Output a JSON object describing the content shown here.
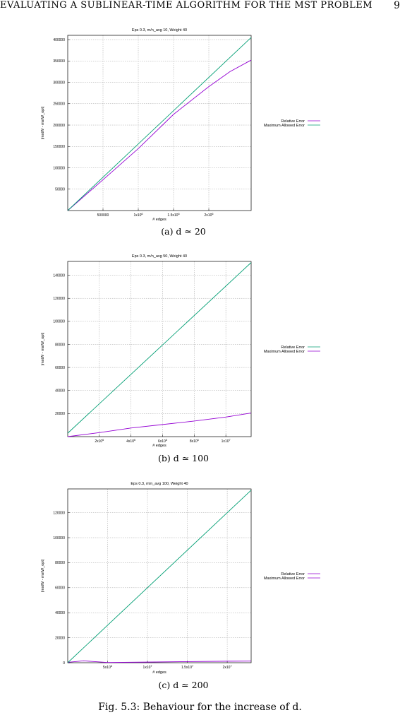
{
  "header": {
    "running_title": "EVALUATING A SUBLINEAR-TIME ALGORITHM FOR THE MST PROBLEM",
    "page_number": "9"
  },
  "figure_caption": "Fig. 5.3: Behaviour for the increase of d.",
  "colors": {
    "relative_error": "#9400d3",
    "maximum_allowed_error": "#009e73",
    "grid": "#a0a0a0"
  },
  "chart_data": [
    {
      "type": "line",
      "caption": "(a) d ≃ 20",
      "title": "Eps 0.3, m/n_avg 10, Weight 40",
      "xlabel": "# edges",
      "ylabel": "|mstW - mstW_opt|",
      "xlim": [
        0,
        2600000
      ],
      "ylim": [
        0,
        410000
      ],
      "xticks": [
        500000,
        1000000,
        1500000,
        2000000
      ],
      "xtick_labels": [
        "500000",
        "1x10^6",
        "1.5x10^6",
        "2x10^6"
      ],
      "yticks": [
        50000,
        100000,
        150000,
        200000,
        250000,
        300000,
        350000,
        400000
      ],
      "ytick_labels": [
        "50000",
        "100000",
        "150000",
        "200000",
        "250000",
        "300000",
        "350000",
        "400000"
      ],
      "grid": true,
      "legend_position": "right",
      "series": [
        {
          "name": "Relative Error",
          "color": "#9400d3",
          "x": [
            0,
            500000,
            1000000,
            1500000,
            2000000,
            2300000,
            2600000
          ],
          "y": [
            0,
            72000,
            145000,
            225000,
            290000,
            325000,
            352000
          ]
        },
        {
          "name": "Maximum Allowed Error",
          "color": "#009e73",
          "x": [
            0,
            2600000
          ],
          "y": [
            0,
            405000
          ]
        }
      ]
    },
    {
      "type": "line",
      "caption": "(b) d ≃ 100",
      "title": "Eps 0.3, m/n_avg 50, Weight 40",
      "xlabel": "# edges",
      "ylabel": "|mstW - mstW_opt|",
      "xlim": [
        0,
        11600000
      ],
      "ylim": [
        0,
        152000
      ],
      "xticks": [
        2000000,
        4000000,
        6000000,
        8000000,
        10000000
      ],
      "xtick_labels": [
        "2x10^6",
        "4x10^6",
        "6x10^6",
        "8x10^6",
        "1x10^7"
      ],
      "yticks": [
        20000,
        40000,
        60000,
        80000,
        100000,
        120000,
        140000
      ],
      "ytick_labels": [
        "20000",
        "40000",
        "60000",
        "80000",
        "100000",
        "120000",
        "140000"
      ],
      "grid": true,
      "legend_position": "right",
      "series": [
        {
          "name": "Relative Error",
          "color": "#9400d3",
          "x": [
            0,
            2000000,
            4000000,
            6000000,
            8000000,
            10000000,
            11600000
          ],
          "y": [
            0,
            3500,
            7500,
            10500,
            13500,
            17000,
            20500
          ]
        },
        {
          "name": "Maximum Allowed Error",
          "color": "#009e73",
          "x": [
            0,
            11600000
          ],
          "y": [
            3000,
            151000
          ]
        }
      ]
    },
    {
      "type": "line",
      "caption": "(c) d ≃ 200",
      "title": "Eps 0.3, m/n_avg 100, Weight 40",
      "xlabel": "# edges",
      "ylabel": "|mstW - mstW_opt|",
      "xlim": [
        0,
        23000000
      ],
      "ylim": [
        0,
        139000
      ],
      "xticks": [
        5000000,
        10000000,
        15000000,
        20000000
      ],
      "xtick_labels": [
        "5x10^6",
        "1x10^7",
        "1.5x10^7",
        "2x10^7"
      ],
      "yticks": [
        0,
        20000,
        40000,
        60000,
        80000,
        100000,
        120000
      ],
      "ytick_labels": [
        "0",
        "20000",
        "40000",
        "60000",
        "80000",
        "100000",
        "120000"
      ],
      "grid": true,
      "legend_position": "right",
      "series": [
        {
          "name": "Relative Error",
          "color": "#9400d3",
          "x": [
            0,
            2000000,
            5000000,
            10000000,
            15000000,
            20000000,
            23000000
          ],
          "y": [
            300,
            1500,
            200,
            500,
            900,
            1200,
            1300
          ]
        },
        {
          "name": "Maximum Allowed Error",
          "color": "#009e73",
          "x": [
            0,
            23000000
          ],
          "y": [
            0,
            138000
          ]
        }
      ]
    }
  ]
}
